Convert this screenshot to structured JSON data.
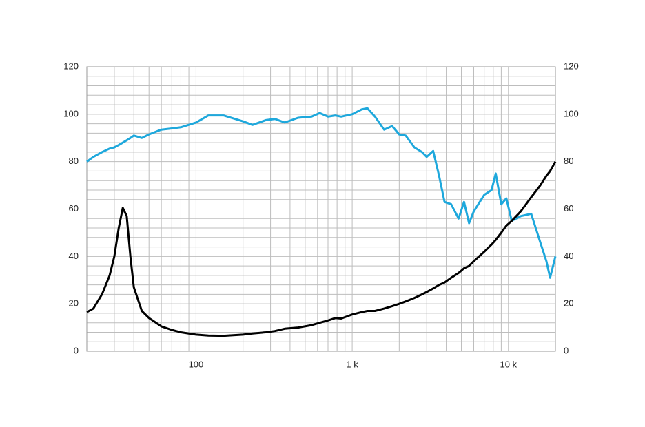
{
  "chart_data": {
    "type": "line",
    "xscale": "log",
    "x": [
      20,
      22,
      25,
      28,
      30,
      32,
      34,
      36,
      38,
      40,
      45,
      50,
      60,
      70,
      80,
      100,
      120,
      150,
      200,
      230,
      280,
      320,
      370,
      450,
      550,
      620,
      700,
      780,
      850,
      1000,
      1150,
      1250,
      1400,
      1600,
      1800,
      2000,
      2200,
      2500,
      2800,
      3000,
      3300,
      3600,
      3900,
      4300,
      4800,
      5200,
      5600,
      6000,
      7000,
      7800,
      8300,
      9000,
      9700,
      10500,
      12000,
      14000,
      16000,
      17500,
      18500,
      20000
    ],
    "series": [
      {
        "color": "#1ea8dc",
        "values": [
          80,
          82,
          84,
          85.5,
          86,
          87,
          88,
          89,
          90,
          91,
          90,
          91.5,
          93.5,
          94,
          94.5,
          96.5,
          99.5,
          99.5,
          97,
          95.5,
          97.5,
          98,
          96.5,
          98.5,
          99,
          100.5,
          99,
          99.5,
          99,
          100,
          102,
          102.5,
          99,
          93.5,
          95,
          91.5,
          91,
          86,
          84,
          82,
          84.5,
          74,
          63,
          62,
          56,
          63,
          54,
          59,
          66,
          68,
          75,
          62,
          64.5,
          55,
          57,
          58,
          46,
          38,
          31,
          40
        ]
      },
      {
        "color": "#000000",
        "values": [
          16.5,
          18,
          24,
          32,
          40,
          52,
          60.5,
          57,
          40,
          27,
          17,
          14,
          10.5,
          9,
          8,
          7,
          6.6,
          6.5,
          7,
          7.5,
          8,
          8.5,
          9.5,
          10,
          11,
          12,
          13,
          14,
          13.8,
          15.5,
          16.5,
          17,
          17,
          18,
          19,
          20,
          21,
          22.5,
          24,
          25,
          26.5,
          28,
          29,
          31,
          33,
          35,
          36,
          38,
          42,
          45,
          47,
          50,
          53,
          55,
          59,
          65,
          70,
          74,
          76,
          80
        ]
      }
    ],
    "xlim": [
      20,
      20000
    ],
    "xticks": [
      100,
      {
        "value": 1000,
        "label": "1 k"
      },
      {
        "value": 10000,
        "label": "10 k"
      }
    ],
    "xminor": [
      20,
      30,
      40,
      50,
      60,
      70,
      80,
      90,
      200,
      300,
      400,
      500,
      600,
      700,
      800,
      900,
      2000,
      3000,
      4000,
      5000,
      6000,
      7000,
      8000,
      9000,
      20000
    ],
    "ylim": [
      0,
      120
    ],
    "yticks": [
      0,
      20,
      40,
      60,
      80,
      100,
      120
    ],
    "y2lim": [
      0,
      120
    ],
    "y2ticks": [
      0,
      20,
      40,
      60,
      80,
      100,
      120
    ],
    "yminor": [
      4,
      8,
      12,
      16,
      24,
      28,
      32,
      36,
      44,
      48,
      52,
      56,
      64,
      68,
      72,
      76,
      84,
      88,
      92,
      96,
      104,
      108,
      112,
      116
    ],
    "grid": true
  }
}
